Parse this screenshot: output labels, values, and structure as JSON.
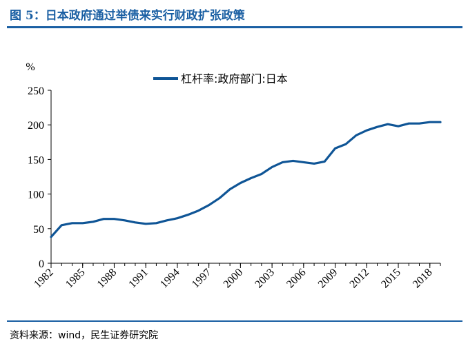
{
  "figure": {
    "title": "图 5：日本政府通过举债来实行财政扩张政策",
    "source": "资料来源：wind，民生证券研究院"
  },
  "colors": {
    "accent": "#1a5fa3",
    "series": "#0f5596"
  },
  "chart_data": {
    "type": "line",
    "title": "",
    "xlabel": "",
    "ylabel": "%",
    "ylim": [
      0,
      250
    ],
    "yticks": [
      0,
      50,
      100,
      150,
      200,
      250
    ],
    "xlim": [
      1982,
      2019
    ],
    "xticks": [
      1982,
      1985,
      1988,
      1991,
      1994,
      1997,
      2000,
      2003,
      2006,
      2009,
      2012,
      2015,
      2018
    ],
    "legend_position": "top-center",
    "grid": false,
    "series": [
      {
        "name": "杠杆率:政府部门:日本",
        "x": [
          1982,
          1983,
          1984,
          1985,
          1986,
          1987,
          1988,
          1989,
          1990,
          1991,
          1992,
          1993,
          1994,
          1995,
          1996,
          1997,
          1998,
          1999,
          2000,
          2001,
          2002,
          2003,
          2004,
          2005,
          2006,
          2007,
          2008,
          2009,
          2010,
          2011,
          2012,
          2013,
          2014,
          2015,
          2016,
          2017,
          2018,
          2019
        ],
        "y": [
          38,
          55,
          58,
          58,
          60,
          64,
          64,
          62,
          59,
          57,
          58,
          62,
          65,
          70,
          76,
          84,
          94,
          107,
          116,
          123,
          129,
          139,
          146,
          148,
          146,
          144,
          147,
          166,
          172,
          185,
          192,
          197,
          201,
          198,
          202,
          202,
          204,
          204
        ]
      }
    ]
  }
}
